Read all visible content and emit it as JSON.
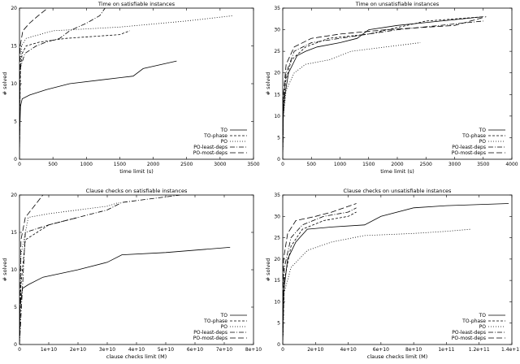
{
  "legend_labels": [
    "TO",
    "TO-phase",
    "PO",
    "PO-least-deps",
    "PO-most-deps"
  ],
  "chart_data": [
    {
      "type": "line",
      "title": "Time on satisfiable instances",
      "xlabel": "time limit (s)",
      "ylabel": "# solved",
      "xlim": [
        0,
        3500
      ],
      "ylim": [
        0,
        20
      ],
      "xticks": [
        0,
        500,
        1000,
        1500,
        2000,
        2500,
        3000,
        3500
      ],
      "xtick_labels": [
        "0",
        "500",
        "1000",
        "1500",
        "2000",
        "2500",
        "3000",
        "3500"
      ],
      "yticks": [
        0,
        5,
        10,
        15,
        20
      ],
      "ytick_labels": [
        "0",
        "5",
        "10",
        "15",
        "20"
      ],
      "legend_position": "bottom-right",
      "series": [
        {
          "name": "TO",
          "style": "solid",
          "points": [
            [
              0,
              0
            ],
            [
              5,
              4
            ],
            [
              15,
              7
            ],
            [
              40,
              8
            ],
            [
              150,
              8.5
            ],
            [
              400,
              9.2
            ],
            [
              750,
              10
            ],
            [
              1500,
              10.8
            ],
            [
              1700,
              11
            ],
            [
              1850,
              12
            ],
            [
              2350,
              13
            ]
          ]
        },
        {
          "name": "TO-phase",
          "style": "dash",
          "points": [
            [
              0,
              0
            ],
            [
              5,
              6
            ],
            [
              15,
              12
            ],
            [
              40,
              14
            ],
            [
              100,
              15
            ],
            [
              300,
              15.5
            ],
            [
              700,
              16
            ],
            [
              1500,
              16.5
            ],
            [
              1650,
              17
            ]
          ]
        },
        {
          "name": "PO",
          "style": "dot",
          "points": [
            [
              0,
              0
            ],
            [
              5,
              10
            ],
            [
              30,
              15
            ],
            [
              100,
              16
            ],
            [
              500,
              17
            ],
            [
              1500,
              17.5
            ],
            [
              2500,
              18.3
            ],
            [
              3200,
              19
            ]
          ]
        },
        {
          "name": "PO-least-deps",
          "style": "dashdot",
          "points": [
            [
              0,
              0
            ],
            [
              10,
              12
            ],
            [
              80,
              14
            ],
            [
              250,
              15
            ],
            [
              400,
              15.5
            ],
            [
              600,
              16
            ],
            [
              750,
              17
            ],
            [
              1000,
              18
            ],
            [
              1200,
              19
            ],
            [
              1280,
              20
            ]
          ]
        },
        {
          "name": "PO-most-deps",
          "style": "longdash",
          "points": [
            [
              0,
              0
            ],
            [
              10,
              15
            ],
            [
              50,
              17
            ],
            [
              150,
              18
            ],
            [
              280,
              19
            ],
            [
              420,
              20
            ]
          ]
        }
      ]
    },
    {
      "type": "line",
      "title": "Time on unsatisfiable instances",
      "xlabel": "time limit (s)",
      "ylabel": "# solved",
      "xlim": [
        0,
        4000
      ],
      "ylim": [
        0,
        35
      ],
      "xticks": [
        0,
        500,
        1000,
        1500,
        2000,
        2500,
        3000,
        3500,
        4000
      ],
      "xtick_labels": [
        "0",
        "500",
        "1000",
        "1500",
        "2000",
        "2500",
        "3000",
        "3500",
        "4000"
      ],
      "yticks": [
        0,
        5,
        10,
        15,
        20,
        25,
        30,
        35
      ],
      "ytick_labels": [
        "0",
        "5",
        "10",
        "15",
        "20",
        "25",
        "30",
        "35"
      ],
      "legend_position": "bottom-right",
      "series": [
        {
          "name": "TO",
          "style": "solid",
          "points": [
            [
              0,
              0
            ],
            [
              10,
              10
            ],
            [
              40,
              15
            ],
            [
              100,
              20
            ],
            [
              250,
              24
            ],
            [
              400,
              25
            ],
            [
              600,
              26
            ],
            [
              1000,
              27
            ],
            [
              1300,
              28
            ],
            [
              1500,
              30
            ],
            [
              2000,
              31
            ],
            [
              3500,
              33
            ]
          ]
        },
        {
          "name": "TO-phase",
          "style": "dash",
          "points": [
            [
              0,
              0
            ],
            [
              10,
              12
            ],
            [
              50,
              18
            ],
            [
              150,
              23
            ],
            [
              400,
              26
            ],
            [
              800,
              28
            ],
            [
              1500,
              29
            ],
            [
              2000,
              30.5
            ],
            [
              2500,
              32
            ],
            [
              3500,
              33
            ]
          ]
        },
        {
          "name": "PO",
          "style": "dot",
          "points": [
            [
              0,
              0
            ],
            [
              10,
              10
            ],
            [
              60,
              16
            ],
            [
              200,
              20
            ],
            [
              400,
              22
            ],
            [
              800,
              23
            ],
            [
              1200,
              25
            ],
            [
              1800,
              26
            ],
            [
              2400,
              27
            ]
          ]
        },
        {
          "name": "PO-least-deps",
          "style": "dashdot",
          "points": [
            [
              0,
              0
            ],
            [
              10,
              13
            ],
            [
              60,
              20
            ],
            [
              200,
              25
            ],
            [
              500,
              27
            ],
            [
              1000,
              28
            ],
            [
              2000,
              30
            ],
            [
              3500,
              32
            ]
          ]
        },
        {
          "name": "PO-most-deps",
          "style": "longdash",
          "points": [
            [
              0,
              0
            ],
            [
              10,
              15
            ],
            [
              60,
              22
            ],
            [
              200,
              26
            ],
            [
              500,
              28
            ],
            [
              1000,
              29
            ],
            [
              1800,
              30
            ],
            [
              3000,
              31
            ],
            [
              3550,
              33
            ]
          ]
        }
      ]
    },
    {
      "type": "line",
      "title": "Clause checks on satisfiable instances",
      "xlabel": "clause checks limit (M)",
      "ylabel": "# solved",
      "xlim": [
        0,
        80000000000.0
      ],
      "ylim": [
        0,
        20
      ],
      "xticks": [
        0,
        10000000000.0,
        20000000000.0,
        30000000000.0,
        40000000000.0,
        50000000000.0,
        60000000000.0,
        70000000000.0,
        80000000000.0
      ],
      "xtick_labels": [
        "0",
        "1e+10",
        "2e+10",
        "3e+10",
        "4e+10",
        "5e+10",
        "6e+10",
        "7e+10",
        "8e+10"
      ],
      "yticks": [
        0,
        5,
        10,
        15,
        20
      ],
      "ytick_labels": [
        "0",
        "5",
        "10",
        "15",
        "20"
      ],
      "legend_position": "bottom-right",
      "series": [
        {
          "name": "TO",
          "style": "solid",
          "points": [
            [
              0,
              0
            ],
            [
              200000000.0,
              5
            ],
            [
              1000000000.0,
              7.5
            ],
            [
              3000000000.0,
              8
            ],
            [
              8000000000.0,
              9
            ],
            [
              20000000000.0,
              10
            ],
            [
              30000000000.0,
              11
            ],
            [
              35000000000.0,
              12
            ],
            [
              50000000000.0,
              12.3
            ],
            [
              72000000000.0,
              13
            ]
          ]
        },
        {
          "name": "TO-phase",
          "style": "dash",
          "points": [
            [
              0,
              0
            ],
            [
              500000000.0,
              8
            ],
            [
              2000000000.0,
              14
            ],
            [
              6000000000.0,
              15
            ],
            [
              10000000000.0,
              16
            ],
            [
              15000000000.0,
              16.5
            ],
            [
              20000000000.0,
              17
            ]
          ]
        },
        {
          "name": "PO",
          "style": "dot",
          "points": [
            [
              0,
              0
            ],
            [
              500000000.0,
              12
            ],
            [
              3000000000.0,
              17
            ],
            [
              10000000000.0,
              17.5
            ],
            [
              30000000000.0,
              18.5
            ],
            [
              34000000000.0,
              19
            ]
          ]
        },
        {
          "name": "PO-least-deps",
          "style": "dashdot",
          "points": [
            [
              0,
              0
            ],
            [
              2000000000.0,
              15
            ],
            [
              10000000000.0,
              16
            ],
            [
              20000000000.0,
              17
            ],
            [
              30000000000.0,
              18
            ],
            [
              35000000000.0,
              19
            ],
            [
              45000000000.0,
              19.5
            ],
            [
              55000000000.0,
              20
            ]
          ]
        },
        {
          "name": "PO-most-deps",
          "style": "longdash",
          "points": [
            [
              0,
              0
            ],
            [
              500000000.0,
              14
            ],
            [
              2000000000.0,
              17
            ],
            [
              4000000000.0,
              18
            ],
            [
              6000000000.0,
              19
            ],
            [
              8000000000.0,
              20
            ]
          ]
        }
      ]
    },
    {
      "type": "line",
      "title": "Clause checks on unsatisfiable instances",
      "xlabel": "clause checks limit (M)",
      "ylabel": "# solved",
      "xlim": [
        0,
        140000000000.0
      ],
      "ylim": [
        0,
        35
      ],
      "xticks": [
        0,
        20000000000.0,
        40000000000.0,
        60000000000.0,
        80000000000.0,
        100000000000.0,
        120000000000.0,
        140000000000.0
      ],
      "xtick_labels": [
        "0",
        "2e+10",
        "4e+10",
        "6e+10",
        "8e+10",
        "1e+11",
        "1.2e+11",
        "1.4e+11"
      ],
      "yticks": [
        0,
        5,
        10,
        15,
        20,
        25,
        30,
        35
      ],
      "ytick_labels": [
        "0",
        "5",
        "10",
        "15",
        "20",
        "25",
        "30",
        "35"
      ],
      "legend_position": "bottom-right",
      "series": [
        {
          "name": "TO",
          "style": "solid",
          "points": [
            [
              0,
              0
            ],
            [
              500000000.0,
              12
            ],
            [
              3000000000.0,
              20
            ],
            [
              8000000000.0,
              24
            ],
            [
              15000000000.0,
              27
            ],
            [
              30000000000.0,
              27.5
            ],
            [
              50000000000.0,
              28
            ],
            [
              60000000000.0,
              30
            ],
            [
              80000000000.0,
              32
            ],
            [
              100000000000.0,
              32.5
            ],
            [
              138000000000.0,
              33
            ]
          ]
        },
        {
          "name": "TO-phase",
          "style": "dash",
          "points": [
            [
              0,
              0
            ],
            [
              1000000000.0,
              15
            ],
            [
              5000000000.0,
              23
            ],
            [
              12000000000.0,
              27
            ],
            [
              25000000000.0,
              29
            ],
            [
              40000000000.0,
              30
            ],
            [
              45000000000.0,
              31
            ]
          ]
        },
        {
          "name": "PO",
          "style": "dot",
          "points": [
            [
              0,
              0
            ],
            [
              800000000.0,
              12
            ],
            [
              5000000000.0,
              18
            ],
            [
              15000000000.0,
              22
            ],
            [
              30000000000.0,
              24
            ],
            [
              50000000000.0,
              25.5
            ],
            [
              80000000000.0,
              26
            ],
            [
              100000000000.0,
              26.5
            ],
            [
              115000000000.0,
              27
            ]
          ]
        },
        {
          "name": "PO-least-deps",
          "style": "dashdot",
          "points": [
            [
              0,
              0
            ],
            [
              1000000000.0,
              18
            ],
            [
              5000000000.0,
              25
            ],
            [
              12000000000.0,
              28
            ],
            [
              25000000000.0,
              30
            ],
            [
              40000000000.0,
              31
            ],
            [
              45000000000.0,
              32
            ]
          ]
        },
        {
          "name": "PO-most-deps",
          "style": "longdash",
          "points": [
            [
              0,
              0
            ],
            [
              500000000.0,
              20
            ],
            [
              3000000000.0,
              26
            ],
            [
              8000000000.0,
              29
            ],
            [
              20000000000.0,
              30
            ],
            [
              30000000000.0,
              31
            ],
            [
              45000000000.0,
              33
            ]
          ]
        }
      ]
    }
  ]
}
